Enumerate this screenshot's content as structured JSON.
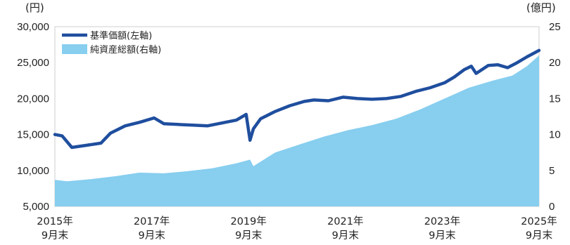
{
  "chart_data": {
    "type": "line",
    "title": "",
    "y_unit_left": "(円)",
    "y_unit_right": "(億円)",
    "ylim_left": [
      5000,
      30000
    ],
    "ylim_right": [
      0,
      25
    ],
    "yticks_left": [
      "30,000",
      "25,000",
      "20,000",
      "15,000",
      "10,000",
      "5,000"
    ],
    "yticks_right": [
      "25",
      "20",
      "15",
      "10",
      "5",
      "0"
    ],
    "xticks": [
      {
        "year": "2015年",
        "month": "9月末"
      },
      {
        "year": "2017年",
        "month": "9月末"
      },
      {
        "year": "2019年",
        "month": "9月末"
      },
      {
        "year": "2021年",
        "month": "9月末"
      },
      {
        "year": "2023年",
        "month": "9月末"
      },
      {
        "year": "2025年",
        "month": "9月末"
      }
    ],
    "legend_position": "top-left",
    "series": [
      {
        "name": "基準価額(左軸)",
        "axis": "left",
        "style": "line",
        "color": "#1f4e9e",
        "x": [
          2015.75,
          2015.9,
          2016.0,
          2016.1,
          2016.4,
          2016.7,
          2016.9,
          2017.2,
          2017.5,
          2017.8,
          2018.0,
          2018.3,
          2018.6,
          2018.9,
          2019.2,
          2019.5,
          2019.7,
          2019.78,
          2019.85,
          2020.0,
          2020.3,
          2020.6,
          2020.9,
          2021.1,
          2021.4,
          2021.7,
          2022.0,
          2022.3,
          2022.6,
          2022.9,
          2023.2,
          2023.5,
          2023.8,
          2024.0,
          2024.2,
          2024.35,
          2024.45,
          2024.7,
          2024.9,
          2025.1,
          2025.3,
          2025.5,
          2025.75
        ],
        "values": [
          15000,
          14800,
          14000,
          13200,
          13500,
          13800,
          15200,
          16200,
          16700,
          17300,
          16500,
          16400,
          16300,
          16200,
          16600,
          17000,
          17800,
          14200,
          15800,
          17200,
          18200,
          19000,
          19600,
          19800,
          19700,
          20200,
          20000,
          19900,
          20000,
          20300,
          21000,
          21500,
          22200,
          23000,
          24000,
          24500,
          23500,
          24600,
          24700,
          24300,
          25000,
          25800,
          26700
        ]
      },
      {
        "name": "純資産総額(右軸)",
        "axis": "right",
        "style": "area",
        "color": "#87ceef",
        "x": [
          2015.75,
          2016.0,
          2016.5,
          2017.0,
          2017.5,
          2018.0,
          2018.5,
          2019.0,
          2019.5,
          2019.78,
          2019.85,
          2020.3,
          2020.8,
          2021.3,
          2021.8,
          2022.3,
          2022.8,
          2023.3,
          2023.8,
          2024.3,
          2024.8,
          2025.2,
          2025.5,
          2025.75
        ],
        "values": [
          3.7,
          3.5,
          3.8,
          4.2,
          4.7,
          4.6,
          4.9,
          5.3,
          6.0,
          6.5,
          5.6,
          7.5,
          8.6,
          9.7,
          10.6,
          11.3,
          12.2,
          13.5,
          15.0,
          16.5,
          17.5,
          18.2,
          19.5,
          21.0
        ]
      }
    ]
  }
}
